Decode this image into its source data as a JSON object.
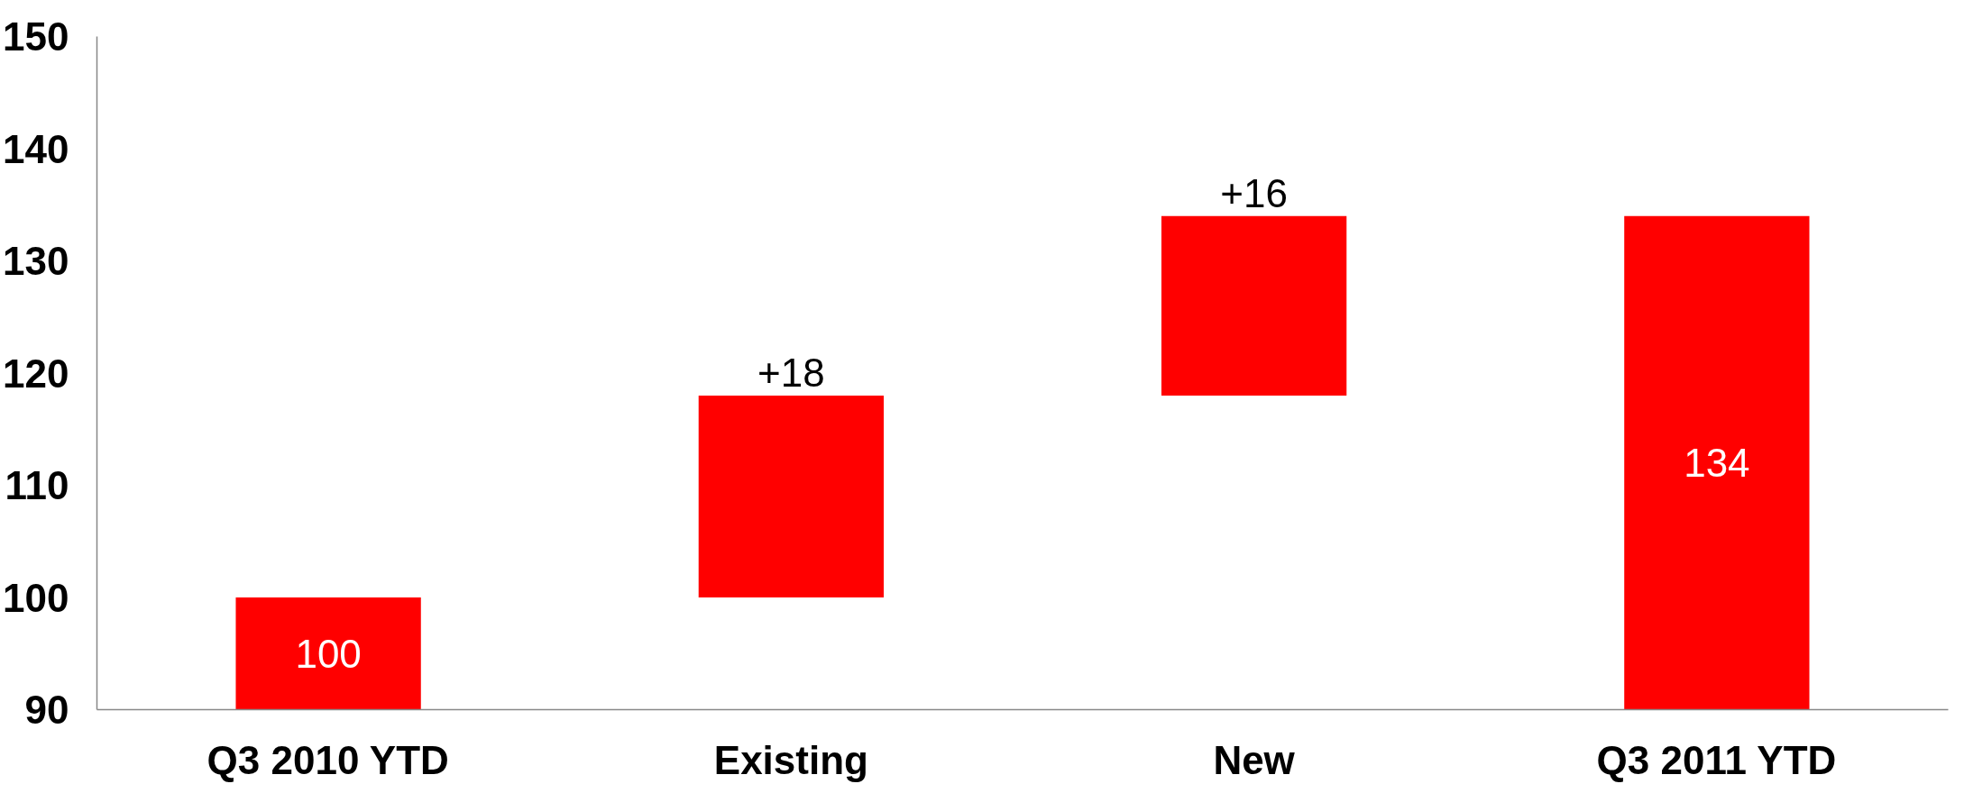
{
  "chart_data": {
    "type": "bar",
    "categories": [
      "Q3 2010 YTD",
      "Existing",
      "New",
      "Q3 2011 YTD"
    ],
    "values": [
      100,
      18,
      16,
      134
    ],
    "base": [
      0,
      100,
      118,
      0
    ],
    "colors": [
      "#ff0000",
      "#ff0000",
      "#ff0000",
      "#ff0000"
    ],
    "value_labels": [
      "100",
      "+18",
      "+16",
      "134"
    ],
    "ylim": [
      90,
      150
    ],
    "yticks": [
      90,
      100,
      110,
      120,
      130,
      140,
      150
    ],
    "grid": false
  }
}
